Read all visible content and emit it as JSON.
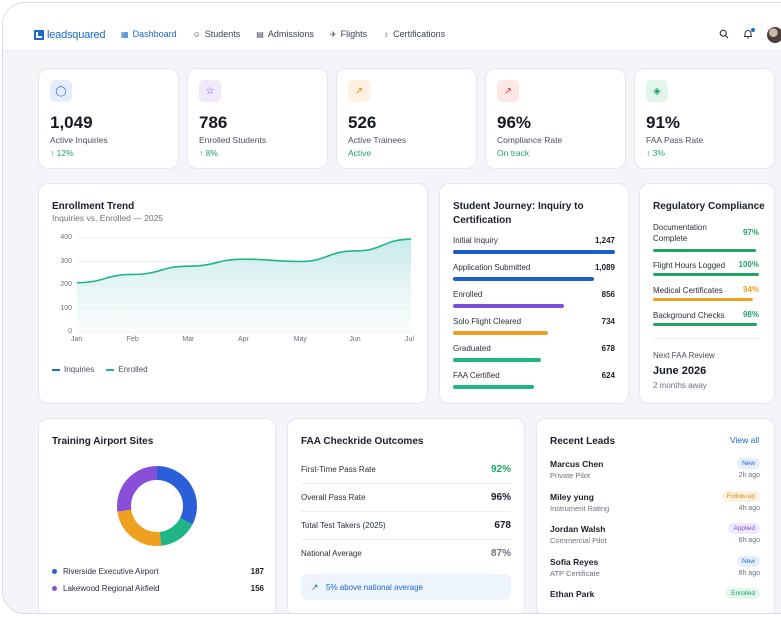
{
  "brand": {
    "name": "leadsquared"
  },
  "nav": {
    "items": [
      {
        "label": "Dashboard",
        "icon": "grid-icon",
        "glyph": "▦",
        "active": true
      },
      {
        "label": "Students",
        "icon": "users-icon",
        "glyph": "☺",
        "active": false
      },
      {
        "label": "Admissions",
        "icon": "document-icon",
        "glyph": "▤",
        "active": false
      },
      {
        "label": "Flights",
        "icon": "plane-icon",
        "glyph": "✈",
        "active": false
      },
      {
        "label": "Certifications",
        "icon": "award-icon",
        "glyph": "♁",
        "active": false
      }
    ]
  },
  "kpis": [
    {
      "value": "1,049",
      "label": "Active Inquiries",
      "sub": "↑ 12%",
      "icon": "circle-icon",
      "glyph": "◯",
      "icon_bg": "#e6eefb",
      "icon_color": "#1b6ac9"
    },
    {
      "value": "786",
      "label": "Enrolled Students",
      "sub": "↑ 8%",
      "icon": "star-icon",
      "glyph": "☆",
      "icon_bg": "#efe9fb",
      "icon_color": "#7a4fd6"
    },
    {
      "value": "526",
      "label": "Active Trainees",
      "sub": "Active",
      "icon": "trend-up-icon",
      "glyph": "↗",
      "icon_bg": "#fdf1df",
      "icon_color": "#e0901a"
    },
    {
      "value": "96%",
      "label": "Compliance Rate",
      "sub": "On track",
      "icon": "trend-icon",
      "glyph": "↗",
      "icon_bg": "#fce6e6",
      "icon_color": "#d9443f"
    },
    {
      "value": "91%",
      "label": "FAA Pass Rate",
      "sub": "↑ 3%",
      "icon": "layers-icon",
      "glyph": "◈",
      "icon_bg": "#e2f6ec",
      "icon_color": "#1fa463"
    }
  ],
  "enrollment": {
    "title": "Enrollment Trend",
    "subtitle": "Inquiries vs. Enrolled — 2025",
    "legend": [
      {
        "name": "Inquiries",
        "color": "#1b6ac9"
      },
      {
        "name": "Enrolled",
        "color": "#1fb587"
      }
    ]
  },
  "chart_data": {
    "type": "area",
    "categories": [
      "Jan",
      "Feb",
      "Mar",
      "Apr",
      "May",
      "Jun",
      "Jul"
    ],
    "series": [
      {
        "name": "Enrolled",
        "values": [
          210,
          245,
          280,
          310,
          300,
          345,
          395
        ]
      }
    ],
    "yticks": [
      "400",
      "300",
      "200",
      "100",
      "0"
    ],
    "ylim": [
      0,
      400
    ],
    "grid": "horizontal",
    "legend_position": "bottom-left",
    "line_color": "#1fb587"
  },
  "journey": {
    "title": "Student Journey: Inquiry to Certification",
    "stages": [
      {
        "label": "Initial Inquiry",
        "value": "1,247",
        "count": 1247,
        "color": "#1b5fcc"
      },
      {
        "label": "Application Submitted",
        "value": "1,089",
        "count": 1089,
        "color": "#1b5fcc"
      },
      {
        "label": "Enrolled",
        "value": "856",
        "count": 856,
        "color": "#7b4fd9"
      },
      {
        "label": "Solo Flight Cleared",
        "value": "734",
        "count": 734,
        "color": "#f0a020"
      },
      {
        "label": "Graduated",
        "value": "678",
        "count": 678,
        "color": "#1fb587"
      },
      {
        "label": "FAA Certified",
        "value": "624",
        "count": 624,
        "color": "#1fb587"
      }
    ]
  },
  "compliance": {
    "title": "Regulatory Compliance",
    "items": [
      {
        "label": "Documentation Complete",
        "value": "97%",
        "pct": 97,
        "color": "#1fa463"
      },
      {
        "label": "Flight Hours Logged",
        "value": "100%",
        "pct": 100,
        "color": "#1fa463"
      },
      {
        "label": "Medical Certificates",
        "value": "94%",
        "pct": 94,
        "color": "#f0a020"
      },
      {
        "label": "Background Checks",
        "value": "98%",
        "pct": 98,
        "color": "#1fa463"
      }
    ],
    "review_label": "Next FAA Review",
    "review_date": "June 2026",
    "review_sub": "2 months away"
  },
  "sites": {
    "title": "Training Airport Sites",
    "items": [
      {
        "name": "Riverside Executive Airport",
        "value": "187",
        "count": 187,
        "color": "#2b5fd9"
      },
      {
        "name": "Lakewood Regional Airfield",
        "value": "156",
        "count": 156,
        "color": "#8a4fd9"
      }
    ],
    "donut": [
      {
        "value": 187,
        "color": "#2b5fd9"
      },
      {
        "value": 90,
        "color": "#1fb587"
      },
      {
        "value": 140,
        "color": "#f0a020"
      },
      {
        "value": 156,
        "color": "#8a4fd9"
      }
    ]
  },
  "outcomes": {
    "title": "FAA Checkride Outcomes",
    "rows": [
      {
        "label": "First-Time Pass Rate",
        "value": "92%",
        "color": "#1fa463"
      },
      {
        "label": "Overall Pass Rate",
        "value": "96%",
        "color": "#1a1f29"
      },
      {
        "label": "Total Test Takers (2025)",
        "value": "678",
        "color": "#1a1f29"
      },
      {
        "label": "National Average",
        "value": "87%",
        "color": "#6b717d"
      }
    ],
    "banner": "5% above national average"
  },
  "leads": {
    "title": "Recent Leads",
    "view_all": "View all",
    "items": [
      {
        "name": "Marcus Chen",
        "cert": "Private Pilot",
        "badge": "New",
        "time": "2h ago",
        "badge_bg": "#e6eefb",
        "badge_color": "#1b6ac9"
      },
      {
        "name": "Miley yung",
        "cert": "Instrument Rating",
        "badge": "Follow-up",
        "time": "4h ago",
        "badge_bg": "#fdf1df",
        "badge_color": "#d98a10"
      },
      {
        "name": "Jordan Walsh",
        "cert": "Commercial Pilot",
        "badge": "Applied",
        "time": "6h ago",
        "badge_bg": "#efe9fb",
        "badge_color": "#7a4fd6"
      },
      {
        "name": "Sofia Reyes",
        "cert": "ATP Certificate",
        "badge": "New",
        "time": "8h ago",
        "badge_bg": "#e6eefb",
        "badge_color": "#1b6ac9"
      },
      {
        "name": "Ethan Park",
        "cert": "",
        "badge": "Enrolled",
        "time": "",
        "badge_bg": "#e2f6ec",
        "badge_color": "#1fa463"
      }
    ]
  }
}
